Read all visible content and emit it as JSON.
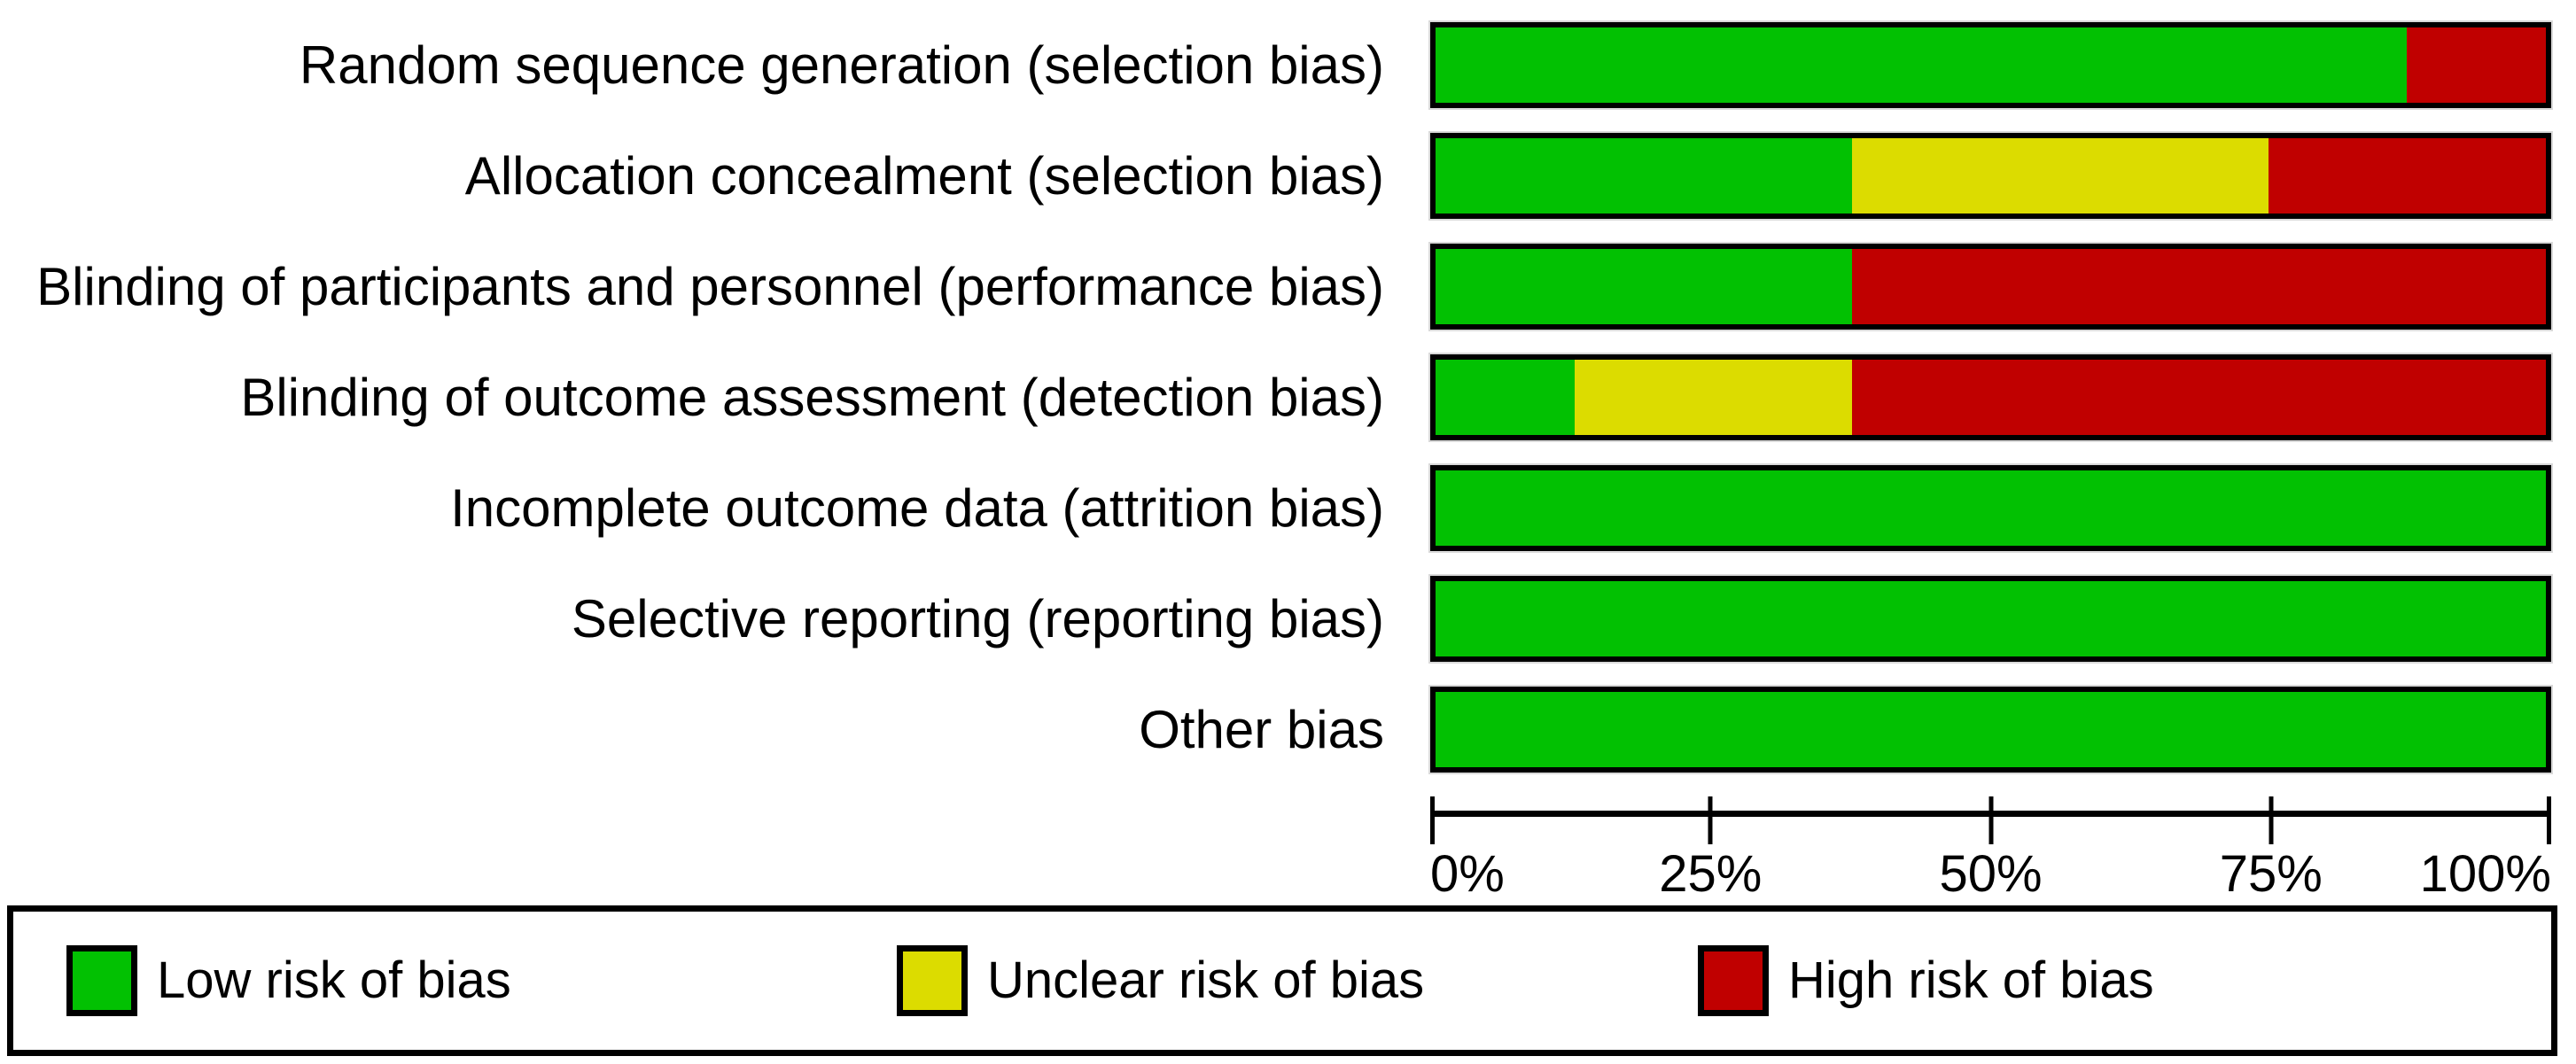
{
  "chart_data": {
    "type": "bar",
    "orientation": "horizontal",
    "stacked": true,
    "unit": "%",
    "categories": [
      "Random sequence generation (selection bias)",
      "Allocation concealment (selection bias)",
      "Blinding of participants and personnel (performance bias)",
      "Blinding of outcome assessment (detection bias)",
      "Incomplete outcome data (attrition bias)",
      "Selective reporting (reporting bias)",
      "Other bias"
    ],
    "series": [
      {
        "name": "Low risk of bias",
        "key": "low-risk",
        "color": "#02C102",
        "values": [
          87.5,
          37.5,
          37.5,
          12.5,
          100,
          100,
          100
        ]
      },
      {
        "name": "Unclear risk of bias",
        "key": "unclear-risk",
        "color": "#DCDC00",
        "values": [
          0,
          37.5,
          0,
          25,
          0,
          0,
          0
        ]
      },
      {
        "name": "High risk of bias",
        "key": "high-risk",
        "color": "#C00000",
        "values": [
          12.5,
          25,
          62.5,
          62.5,
          0,
          0,
          0
        ]
      }
    ],
    "xlabel": "",
    "ylabel": "",
    "xlim": [
      0,
      100
    ],
    "x_ticks": [
      "0%",
      "25%",
      "50%",
      "75%",
      "100%"
    ],
    "x_tick_values": [
      0,
      25,
      50,
      75,
      100
    ],
    "grid": false,
    "legend_position": "bottom"
  },
  "colors": {
    "bar_border": "#000000",
    "axis": "#000000",
    "text": "#000000",
    "background": "#FFFFFF"
  }
}
